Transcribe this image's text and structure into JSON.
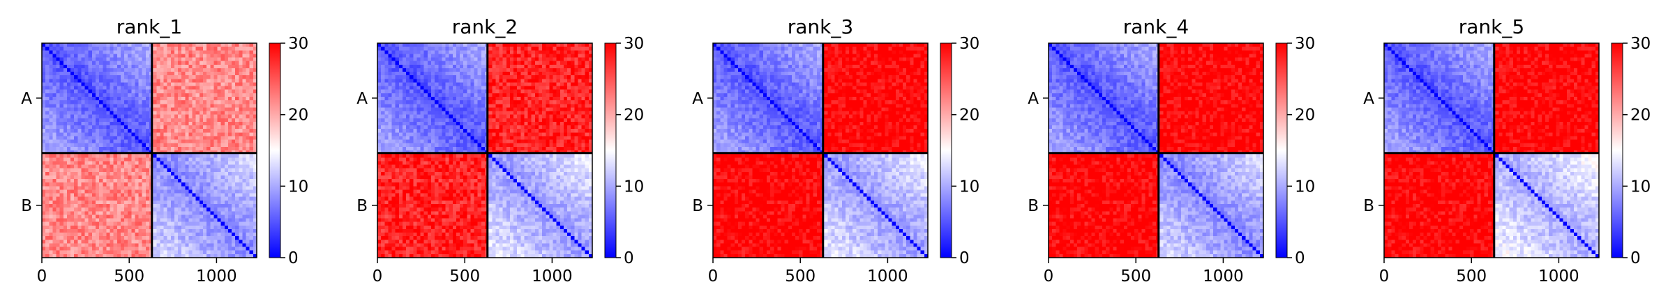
{
  "colors": {
    "low": "#0000ff",
    "mid": "#ffffff",
    "high": "#ff0000",
    "line": "#000000"
  },
  "chart_data": [
    {
      "type": "heatmap",
      "title": "rank_1",
      "xticks": [
        0,
        500,
        1000
      ],
      "xlim": [
        0,
        1230
      ],
      "ytick_labels": [
        "A",
        "B"
      ],
      "colorbar_ticks": [
        0,
        10,
        20,
        30
      ],
      "vmin": 0,
      "vmax": 30,
      "boundary": 630,
      "values": {
        "A_A": 5,
        "A_B": 22,
        "B_B": 8
      }
    },
    {
      "type": "heatmap",
      "title": "rank_2",
      "xticks": [
        0,
        500,
        1000
      ],
      "xlim": [
        0,
        1230
      ],
      "ytick_labels": [
        "A",
        "B"
      ],
      "colorbar_ticks": [
        0,
        10,
        20,
        30
      ],
      "vmin": 0,
      "vmax": 30,
      "boundary": 630,
      "values": {
        "A_A": 5,
        "A_B": 28,
        "B_B": 9
      }
    },
    {
      "type": "heatmap",
      "title": "rank_3",
      "xticks": [
        0,
        500,
        1000
      ],
      "xlim": [
        0,
        1230
      ],
      "ytick_labels": [
        "A",
        "B"
      ],
      "colorbar_ticks": [
        0,
        10,
        20,
        30
      ],
      "vmin": 0,
      "vmax": 30,
      "boundary": 630,
      "values": {
        "A_A": 5,
        "A_B": 30,
        "B_B": 9
      }
    },
    {
      "type": "heatmap",
      "title": "rank_4",
      "xticks": [
        0,
        500,
        1000
      ],
      "xlim": [
        0,
        1230
      ],
      "ytick_labels": [
        "A",
        "B"
      ],
      "colorbar_ticks": [
        0,
        10,
        20,
        30
      ],
      "vmin": 0,
      "vmax": 30,
      "boundary": 630,
      "values": {
        "A_A": 5,
        "A_B": 30,
        "B_B": 8
      }
    },
    {
      "type": "heatmap",
      "title": "rank_5",
      "xticks": [
        0,
        500,
        1000
      ],
      "xlim": [
        0,
        1230
      ],
      "ytick_labels": [
        "A",
        "B"
      ],
      "colorbar_ticks": [
        0,
        10,
        20,
        30
      ],
      "vmin": 0,
      "vmax": 30,
      "boundary": 630,
      "values": {
        "A_A": 5,
        "A_B": 30,
        "B_B": 10
      }
    }
  ]
}
